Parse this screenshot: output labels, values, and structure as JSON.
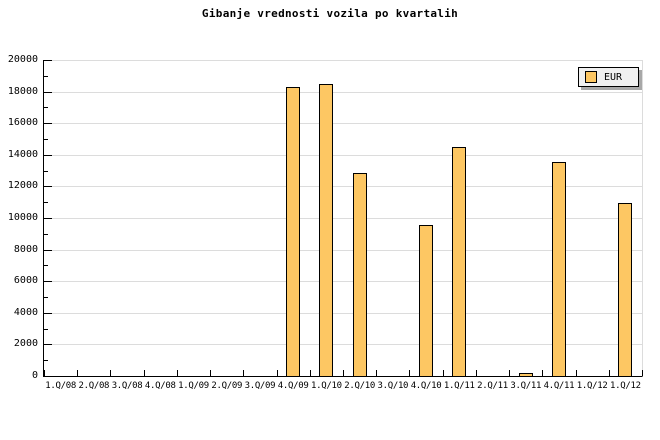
{
  "title": "Gibanje vrednosti vozila po kvartalih",
  "legend": {
    "label": "EUR",
    "swatch_color": "#FDC763",
    "background": "#F0F0F0",
    "shadow_color": "#A8A8A8",
    "position": "top-right"
  },
  "colors": {
    "background": "#FFFFFF",
    "bar_fill": "#FDC763",
    "bar_border": "#000000",
    "gridline": "#DCDCDC",
    "axis": "#000000",
    "text": "#000000"
  },
  "chart_data": {
    "type": "bar",
    "title": "Gibanje vrednosti vozila po kvartalih",
    "series_name": "EUR",
    "categories": [
      "1.Q/08",
      "2.Q/08",
      "3.Q/08",
      "4.Q/08",
      "1.Q/09",
      "2.Q/09",
      "3.Q/09",
      "4.Q/09",
      "1.Q/10",
      "2.Q/10",
      "3.Q/10",
      "4.Q/10",
      "1.Q/11",
      "2.Q/11",
      "3.Q/11",
      "4.Q/11",
      "1.Q/12",
      "1.Q/12"
    ],
    "values": [
      0,
      0,
      0,
      0,
      0,
      0,
      0,
      18200,
      18400,
      12800,
      0,
      9500,
      14400,
      0,
      150,
      13450,
      0,
      10900
    ],
    "xlabel": "",
    "ylabel": "",
    "ylim": [
      0,
      20000
    ],
    "ytick_interval": 2000,
    "yminor_interval": 1000,
    "grid": "horizontal-major-only",
    "legend_position": "top-right"
  }
}
